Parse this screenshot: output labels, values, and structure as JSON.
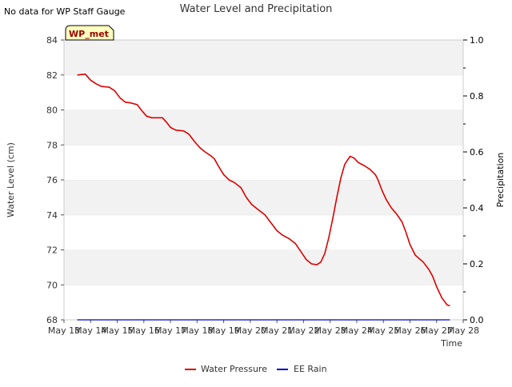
{
  "note": "No data for WP Staff Gauge",
  "chart_data": {
    "type": "line",
    "title": "Water Level and Precipitation",
    "xlabel": "Time",
    "ylabel_left": "Water Level (cm)",
    "ylabel_right": "Precipitation",
    "badge": "WP_met",
    "xlim": [
      13,
      28
    ],
    "x_tick_values": [
      13,
      14,
      15,
      16,
      17,
      18,
      19,
      20,
      21,
      22,
      23,
      24,
      25,
      26,
      27,
      28
    ],
    "x_tick_labels": [
      "May 13",
      "May 14",
      "May 15",
      "May 16",
      "May 17",
      "May 18",
      "May 19",
      "May 20",
      "May 21",
      "May 22",
      "May 23",
      "May 24",
      "May 25",
      "May 26",
      "May 27",
      "May 28"
    ],
    "ylim_left": [
      68,
      84
    ],
    "y_ticks_left": [
      "68",
      "70",
      "72",
      "74",
      "76",
      "78",
      "80",
      "82",
      "84"
    ],
    "ylim_right": [
      0,
      1.0
    ],
    "y_ticks_right": [
      "0.0",
      "0.2",
      "0.4",
      "0.6",
      "0.8",
      "1.0"
    ],
    "grid": "banded horizontal",
    "legend_placement": "bottom",
    "series": [
      {
        "name": "Water Pressure",
        "axis": "left",
        "color": "#dd0000",
        "points": [
          [
            13.5,
            82.0
          ],
          [
            13.8,
            82.05
          ],
          [
            14.0,
            81.7
          ],
          [
            14.2,
            81.5
          ],
          [
            14.4,
            81.35
          ],
          [
            14.7,
            81.3
          ],
          [
            14.9,
            81.1
          ],
          [
            15.1,
            80.7
          ],
          [
            15.3,
            80.45
          ],
          [
            15.5,
            80.4
          ],
          [
            15.75,
            80.3
          ],
          [
            15.9,
            80.0
          ],
          [
            16.1,
            79.65
          ],
          [
            16.3,
            79.55
          ],
          [
            16.5,
            79.55
          ],
          [
            16.7,
            79.55
          ],
          [
            16.85,
            79.3
          ],
          [
            17.0,
            79.0
          ],
          [
            17.2,
            78.85
          ],
          [
            17.5,
            78.8
          ],
          [
            17.7,
            78.6
          ],
          [
            17.9,
            78.2
          ],
          [
            18.1,
            77.85
          ],
          [
            18.3,
            77.6
          ],
          [
            18.5,
            77.4
          ],
          [
            18.65,
            77.2
          ],
          [
            18.8,
            76.8
          ],
          [
            19.0,
            76.3
          ],
          [
            19.2,
            76.0
          ],
          [
            19.4,
            75.85
          ],
          [
            19.65,
            75.55
          ],
          [
            19.85,
            75.0
          ],
          [
            20.05,
            74.6
          ],
          [
            20.3,
            74.3
          ],
          [
            20.55,
            74.0
          ],
          [
            20.75,
            73.6
          ],
          [
            21.0,
            73.1
          ],
          [
            21.2,
            72.85
          ],
          [
            21.45,
            72.65
          ],
          [
            21.7,
            72.35
          ],
          [
            21.9,
            71.9
          ],
          [
            22.1,
            71.45
          ],
          [
            22.3,
            71.2
          ],
          [
            22.5,
            71.15
          ],
          [
            22.65,
            71.3
          ],
          [
            22.8,
            71.8
          ],
          [
            22.95,
            72.7
          ],
          [
            23.1,
            73.8
          ],
          [
            23.25,
            75.0
          ],
          [
            23.4,
            76.1
          ],
          [
            23.55,
            76.9
          ],
          [
            23.75,
            77.35
          ],
          [
            23.9,
            77.25
          ],
          [
            24.05,
            77.0
          ],
          [
            24.3,
            76.8
          ],
          [
            24.5,
            76.6
          ],
          [
            24.7,
            76.3
          ],
          [
            24.8,
            76.0
          ],
          [
            24.95,
            75.4
          ],
          [
            25.1,
            74.9
          ],
          [
            25.3,
            74.4
          ],
          [
            25.5,
            74.05
          ],
          [
            25.7,
            73.6
          ],
          [
            25.85,
            73.0
          ],
          [
            26.0,
            72.3
          ],
          [
            26.2,
            71.7
          ],
          [
            26.5,
            71.3
          ],
          [
            26.7,
            70.9
          ],
          [
            26.85,
            70.5
          ],
          [
            27.0,
            69.9
          ],
          [
            27.2,
            69.25
          ],
          [
            27.4,
            68.85
          ],
          [
            27.5,
            68.8
          ]
        ]
      },
      {
        "name": "EE Rain",
        "axis": "right",
        "color": "#0000cc",
        "points": [
          [
            13.5,
            0.0
          ],
          [
            27.5,
            0.0
          ]
        ]
      }
    ]
  }
}
